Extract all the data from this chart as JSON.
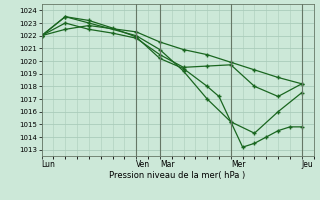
{
  "background_color": "#cce8d8",
  "grid_color": "#aaccbb",
  "line_color": "#1a6620",
  "marker_color": "#1a6620",
  "xlabel": "Pression niveau de la mer( hPa )",
  "ylim": [
    1012.5,
    1024.5
  ],
  "yticks": [
    1013,
    1014,
    1015,
    1016,
    1017,
    1018,
    1019,
    1020,
    1021,
    1022,
    1023,
    1024
  ],
  "day_labels": [
    "Lun",
    "Ven",
    "Mar",
    "Mer",
    "Jeu"
  ],
  "day_positions": [
    0,
    16,
    20,
    32,
    44
  ],
  "vline_positions": [
    16,
    20,
    32,
    44
  ],
  "xlim": [
    0,
    46
  ],
  "series": [
    {
      "x": [
        0,
        4,
        8,
        16,
        20,
        24,
        28,
        32,
        36,
        40,
        44
      ],
      "y": [
        1022.0,
        1022.5,
        1022.8,
        1022.3,
        1021.5,
        1020.9,
        1020.5,
        1019.9,
        1019.3,
        1018.7,
        1018.2
      ]
    },
    {
      "x": [
        0,
        4,
        8,
        12,
        16,
        20,
        24,
        28,
        32,
        36,
        40,
        44
      ],
      "y": [
        1022.0,
        1023.0,
        1022.5,
        1022.2,
        1021.8,
        1020.5,
        1019.5,
        1019.6,
        1019.7,
        1018.0,
        1017.2,
        1018.2
      ]
    },
    {
      "x": [
        0,
        4,
        8,
        12,
        16,
        20,
        24,
        28,
        30,
        32,
        34,
        36,
        38,
        40,
        42,
        44
      ],
      "y": [
        1022.0,
        1023.5,
        1023.2,
        1022.6,
        1021.9,
        1020.2,
        1019.4,
        1018.0,
        1017.2,
        1015.2,
        1013.2,
        1013.5,
        1014.0,
        1014.5,
        1014.8,
        1014.8
      ]
    },
    {
      "x": [
        0,
        4,
        8,
        16,
        20,
        24,
        28,
        32,
        36,
        40,
        44
      ],
      "y": [
        1022.0,
        1023.5,
        1023.0,
        1022.0,
        1020.9,
        1019.2,
        1017.0,
        1015.2,
        1014.3,
        1016.0,
        1017.5
      ]
    }
  ]
}
